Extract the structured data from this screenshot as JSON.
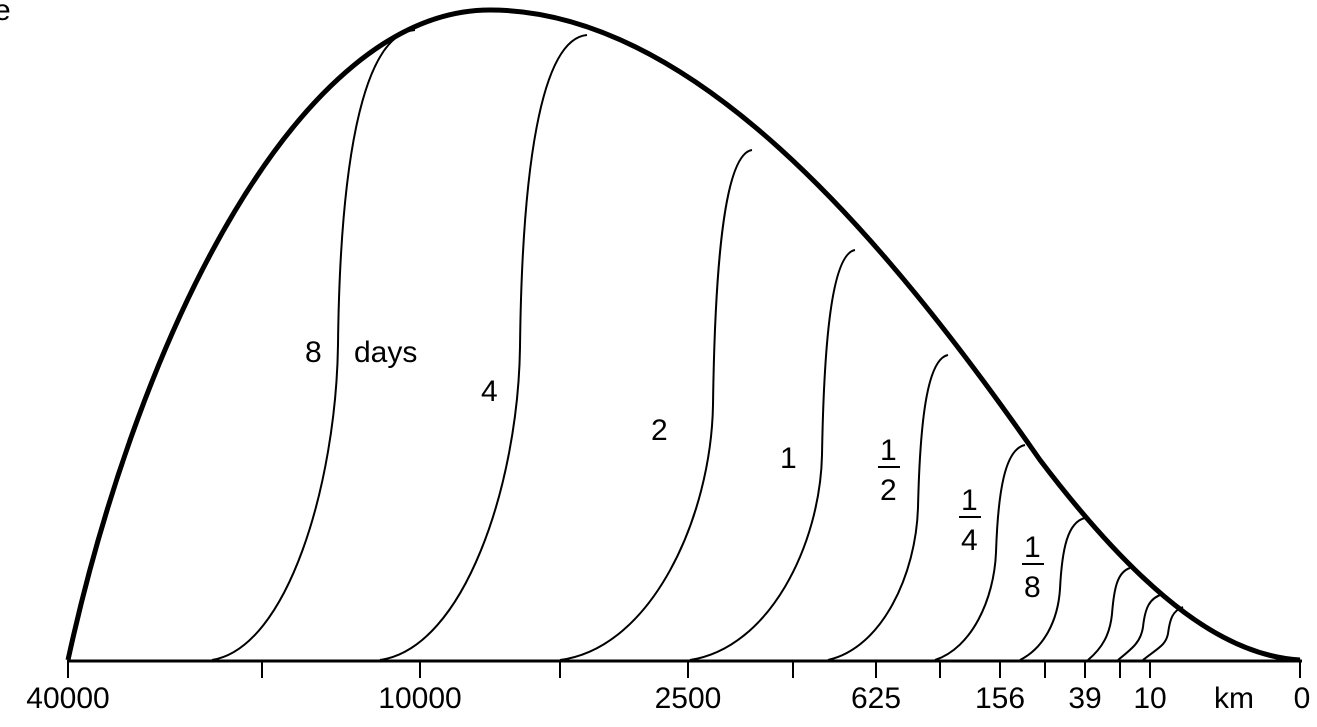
{
  "panel_label": "e",
  "curve_labels": [
    "8",
    "days",
    "4",
    "2",
    "1"
  ],
  "fraction_labels": [
    {
      "numerator": "1",
      "denominator": "2"
    },
    {
      "numerator": "1",
      "denominator": "4"
    },
    {
      "numerator": "1",
      "denominator": "8"
    }
  ],
  "axis_labels": [
    "40000",
    "10000",
    "2500",
    "625",
    "156",
    "39",
    "10",
    "km",
    "0"
  ]
}
